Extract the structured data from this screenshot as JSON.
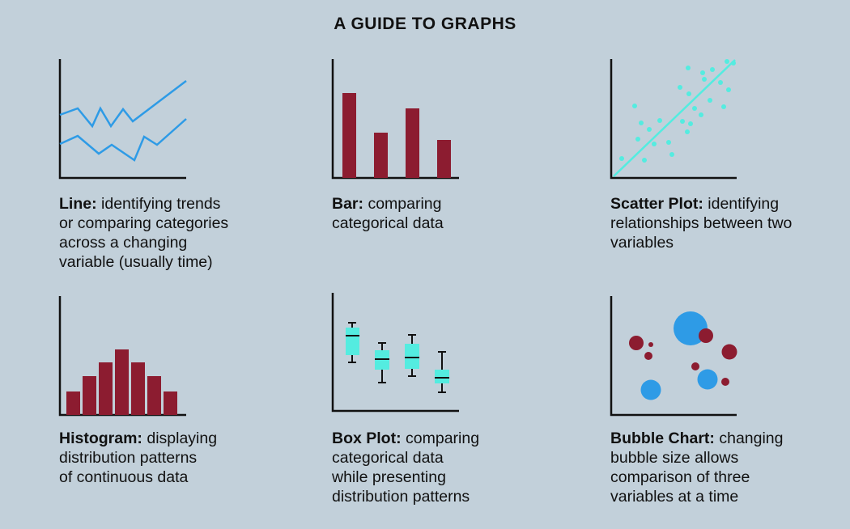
{
  "title": "A GUIDE TO GRAPHS",
  "colors": {
    "background": "#c2d0da",
    "blue": "#2e9be6",
    "maroon": "#8c1c30",
    "cyan": "#54ece0",
    "axis": "#111111"
  },
  "graphs": [
    {
      "name": "Line:",
      "description": "identifying trends or comparing categories across a changing variable (usually time)",
      "lines": [
        "identifying trends",
        "or comparing categories",
        "across a changing",
        "variable (usually time)"
      ]
    },
    {
      "name": "Bar:",
      "description": "comparing categorical data",
      "lines": [
        "comparing",
        "categorical data"
      ]
    },
    {
      "name": "Scatter Plot:",
      "description": "identifying relationships between two variables",
      "lines": [
        "identifying",
        "relationships between two",
        "variables"
      ]
    },
    {
      "name": "Histogram:",
      "description": "displaying distribution patterns of continuous data",
      "lines": [
        "displaying",
        "distribution patterns",
        "of continuous data"
      ]
    },
    {
      "name": "Box Plot:",
      "description": "comparing categorical data while presenting distribution patterns",
      "lines": [
        "comparing",
        "categorical data",
        "while presenting",
        "distribution patterns"
      ]
    },
    {
      "name": "Bubble Chart:",
      "description": "changing bubble size allows comparison of three variables at a time",
      "lines": [
        "changing",
        "bubble size allows",
        "comparison of three",
        "variables at a time"
      ]
    }
  ]
}
